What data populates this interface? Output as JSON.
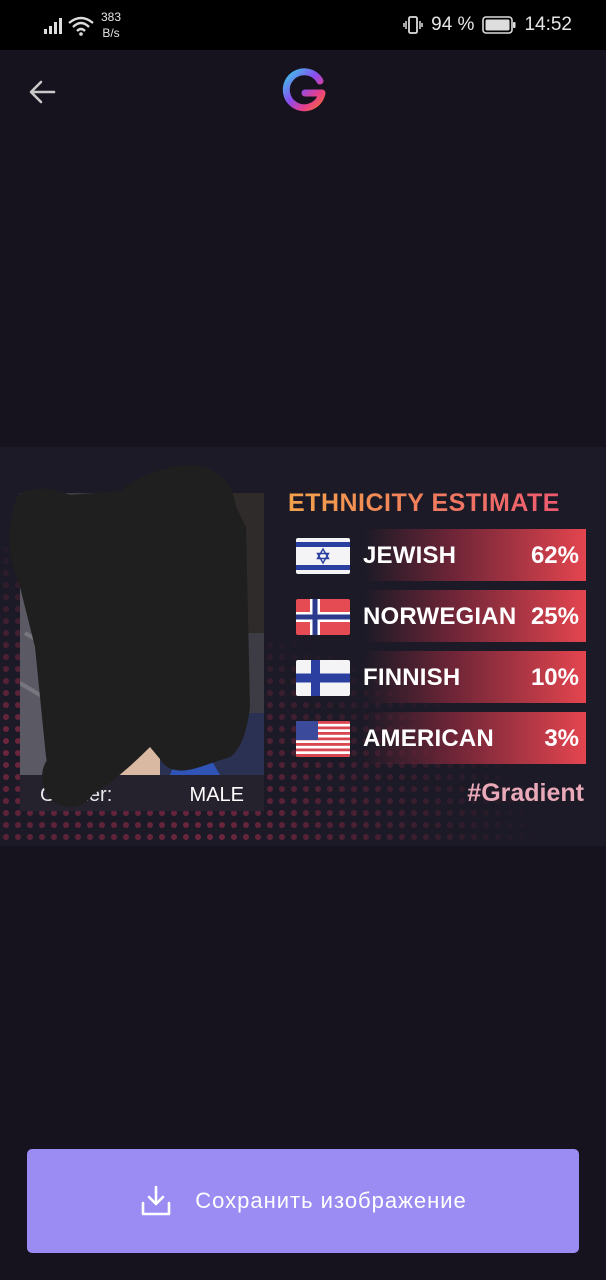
{
  "status_bar": {
    "net_speed_value": "383",
    "net_speed_unit": "B/s",
    "battery": "94 %",
    "time": "14:52"
  },
  "header": {
    "back_icon": "arrow-left-icon",
    "logo_icon": "gradient-g-logo"
  },
  "card": {
    "title": "ETHNICITY ESTIMATE",
    "gender_label": "Gender:",
    "gender_value": "MALE",
    "hashtag": "#Gradient",
    "results": [
      {
        "name": "JEWISH",
        "percent": "62%",
        "flag": "israel-flag"
      },
      {
        "name": "NORWEGIAN",
        "percent": "25%",
        "flag": "norway-flag"
      },
      {
        "name": "FINNISH",
        "percent": "10%",
        "flag": "finland-flag"
      },
      {
        "name": "AMERICAN",
        "percent": "3%",
        "flag": "usa-flag"
      }
    ]
  },
  "save_button": {
    "label": "Сохранить изображение",
    "icon": "download-icon"
  },
  "colors": {
    "background": "#16131f",
    "button": "#9a8cf2",
    "accent_red": "#e4454f",
    "title_orange": "#f2a24a",
    "hashtag_pink": "#e9a9b8"
  }
}
